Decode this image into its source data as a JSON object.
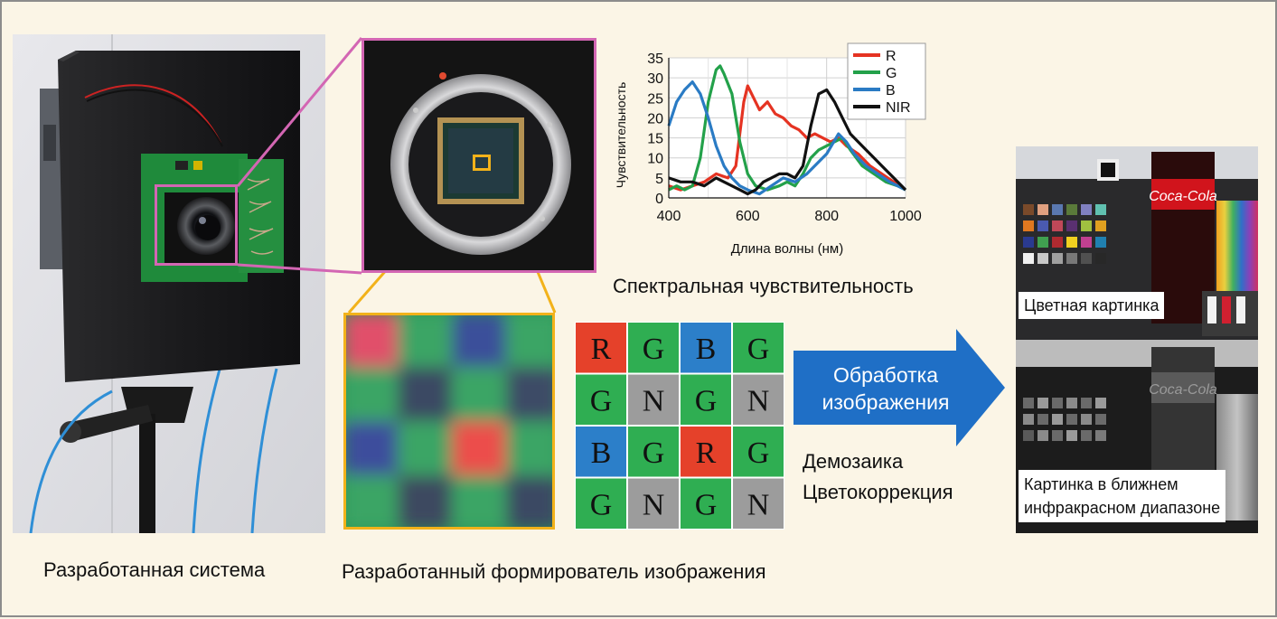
{
  "captions": {
    "system": "Разработанная система",
    "sensor": "Разработанный формирователь изображения",
    "spectral": "Спектральная чувствительность",
    "demosaic_line1": "Демозаика",
    "demosaic_line2": "Цветокоррекция"
  },
  "arrow": {
    "line1": "Обработка",
    "line2": "изображения",
    "color": "#1f6fc6"
  },
  "output_labels": {
    "color_image": "Цветная картинка",
    "nir_line1": "Картинка в ближнем",
    "nir_line2": "инфракрасном диапазоне"
  },
  "mosaic": {
    "rows": [
      [
        "R",
        "G",
        "B",
        "G"
      ],
      [
        "G",
        "N",
        "G",
        "N"
      ],
      [
        "B",
        "G",
        "R",
        "G"
      ],
      [
        "G",
        "N",
        "G",
        "N"
      ]
    ],
    "colors": {
      "R": "#e5412a",
      "G": "#2fae52",
      "B": "#2c7fc9",
      "N": "#9c9c9c"
    }
  },
  "chart_data": {
    "type": "line",
    "title": "",
    "xlabel": "Длина волны (нм)",
    "ylabel": "Чувствительность",
    "xlim": [
      400,
      1000
    ],
    "ylim": [
      0,
      35
    ],
    "xticks": [
      400,
      600,
      800,
      1000
    ],
    "yticks": [
      0,
      5,
      10,
      15,
      20,
      25,
      30,
      35
    ],
    "grid": true,
    "legend_position": "top-right",
    "series": [
      {
        "name": "R",
        "color": "#e53322",
        "points": [
          [
            400,
            3
          ],
          [
            430,
            2
          ],
          [
            460,
            3
          ],
          [
            490,
            4
          ],
          [
            520,
            6
          ],
          [
            550,
            5
          ],
          [
            570,
            8
          ],
          [
            590,
            24
          ],
          [
            600,
            28
          ],
          [
            610,
            26
          ],
          [
            630,
            22
          ],
          [
            650,
            24
          ],
          [
            670,
            21
          ],
          [
            690,
            20
          ],
          [
            710,
            18
          ],
          [
            730,
            17
          ],
          [
            750,
            15
          ],
          [
            770,
            16
          ],
          [
            790,
            15
          ],
          [
            810,
            14
          ],
          [
            830,
            15
          ],
          [
            850,
            13
          ],
          [
            880,
            11
          ],
          [
            910,
            8
          ],
          [
            940,
            6
          ],
          [
            970,
            4
          ],
          [
            1000,
            2
          ]
        ]
      },
      {
        "name": "G",
        "color": "#23a14a",
        "points": [
          [
            400,
            2
          ],
          [
            420,
            3
          ],
          [
            440,
            2
          ],
          [
            460,
            3
          ],
          [
            480,
            10
          ],
          [
            500,
            24
          ],
          [
            520,
            32
          ],
          [
            530,
            33
          ],
          [
            540,
            31
          ],
          [
            560,
            26
          ],
          [
            580,
            14
          ],
          [
            600,
            6
          ],
          [
            620,
            3
          ],
          [
            650,
            2
          ],
          [
            680,
            3
          ],
          [
            700,
            4
          ],
          [
            720,
            3
          ],
          [
            740,
            6
          ],
          [
            760,
            10
          ],
          [
            780,
            12
          ],
          [
            800,
            13
          ],
          [
            820,
            14
          ],
          [
            840,
            15
          ],
          [
            860,
            12
          ],
          [
            890,
            8
          ],
          [
            920,
            6
          ],
          [
            950,
            4
          ],
          [
            980,
            3
          ],
          [
            1000,
            2
          ]
        ]
      },
      {
        "name": "B",
        "color": "#2a7bc4",
        "points": [
          [
            400,
            18
          ],
          [
            420,
            24
          ],
          [
            440,
            27
          ],
          [
            460,
            29
          ],
          [
            480,
            26
          ],
          [
            500,
            20
          ],
          [
            520,
            13
          ],
          [
            540,
            8
          ],
          [
            560,
            5
          ],
          [
            580,
            3
          ],
          [
            600,
            2
          ],
          [
            630,
            1
          ],
          [
            660,
            3
          ],
          [
            690,
            5
          ],
          [
            720,
            4
          ],
          [
            750,
            6
          ],
          [
            780,
            9
          ],
          [
            800,
            11
          ],
          [
            830,
            16
          ],
          [
            850,
            14
          ],
          [
            870,
            11
          ],
          [
            900,
            8
          ],
          [
            930,
            6
          ],
          [
            960,
            4
          ],
          [
            1000,
            2
          ]
        ]
      },
      {
        "name": "NIR",
        "color": "#111111",
        "points": [
          [
            400,
            5
          ],
          [
            430,
            4
          ],
          [
            460,
            4
          ],
          [
            490,
            3
          ],
          [
            520,
            5
          ],
          [
            540,
            4
          ],
          [
            560,
            3
          ],
          [
            580,
            2
          ],
          [
            600,
            1
          ],
          [
            620,
            2
          ],
          [
            640,
            4
          ],
          [
            660,
            5
          ],
          [
            680,
            6
          ],
          [
            700,
            6
          ],
          [
            720,
            5
          ],
          [
            740,
            8
          ],
          [
            760,
            18
          ],
          [
            780,
            26
          ],
          [
            800,
            27
          ],
          [
            820,
            24
          ],
          [
            840,
            20
          ],
          [
            860,
            16
          ],
          [
            880,
            14
          ],
          [
            900,
            12
          ],
          [
            920,
            10
          ],
          [
            940,
            8
          ],
          [
            960,
            6
          ],
          [
            980,
            4
          ],
          [
            1000,
            2
          ]
        ]
      }
    ]
  }
}
